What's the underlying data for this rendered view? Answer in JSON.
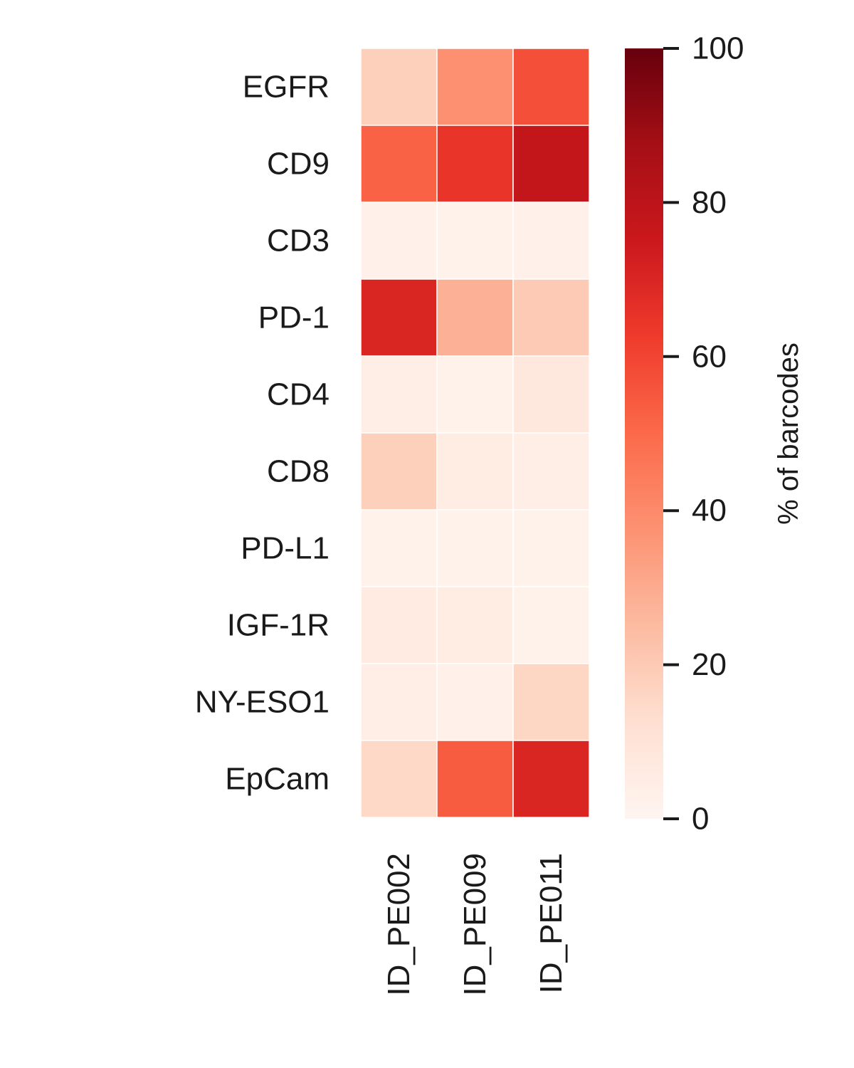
{
  "chart_data": {
    "type": "heatmap",
    "rows": [
      "EGFR",
      "CD9",
      "CD3",
      "PD-1",
      "CD4",
      "CD8",
      "PD-L1",
      "IGF-1R",
      "NY-ESO1",
      "EpCam"
    ],
    "columns": [
      "ID_PE002",
      "ID_PE009",
      "ID_PE011"
    ],
    "values": [
      [
        18,
        38,
        57
      ],
      [
        52,
        65,
        78
      ],
      [
        3,
        2,
        3
      ],
      [
        70,
        28,
        20
      ],
      [
        4,
        2,
        8
      ],
      [
        18,
        5,
        4
      ],
      [
        2,
        2,
        2
      ],
      [
        6,
        5,
        2
      ],
      [
        4,
        3,
        16
      ],
      [
        15,
        54,
        70
      ]
    ],
    "colorbar": {
      "label": "% of barcodes",
      "range": [
        0,
        100
      ],
      "ticks": [
        0,
        20,
        40,
        60,
        80,
        100
      ],
      "colormap": "Reds",
      "colors": [
        "#fff5f0",
        "#fee0d2",
        "#fcbba1",
        "#fc9272",
        "#fb6a4a",
        "#ef3b2c",
        "#cb181d",
        "#a50f15",
        "#67000d"
      ]
    },
    "title": "",
    "xlabel": "",
    "ylabel": ""
  }
}
